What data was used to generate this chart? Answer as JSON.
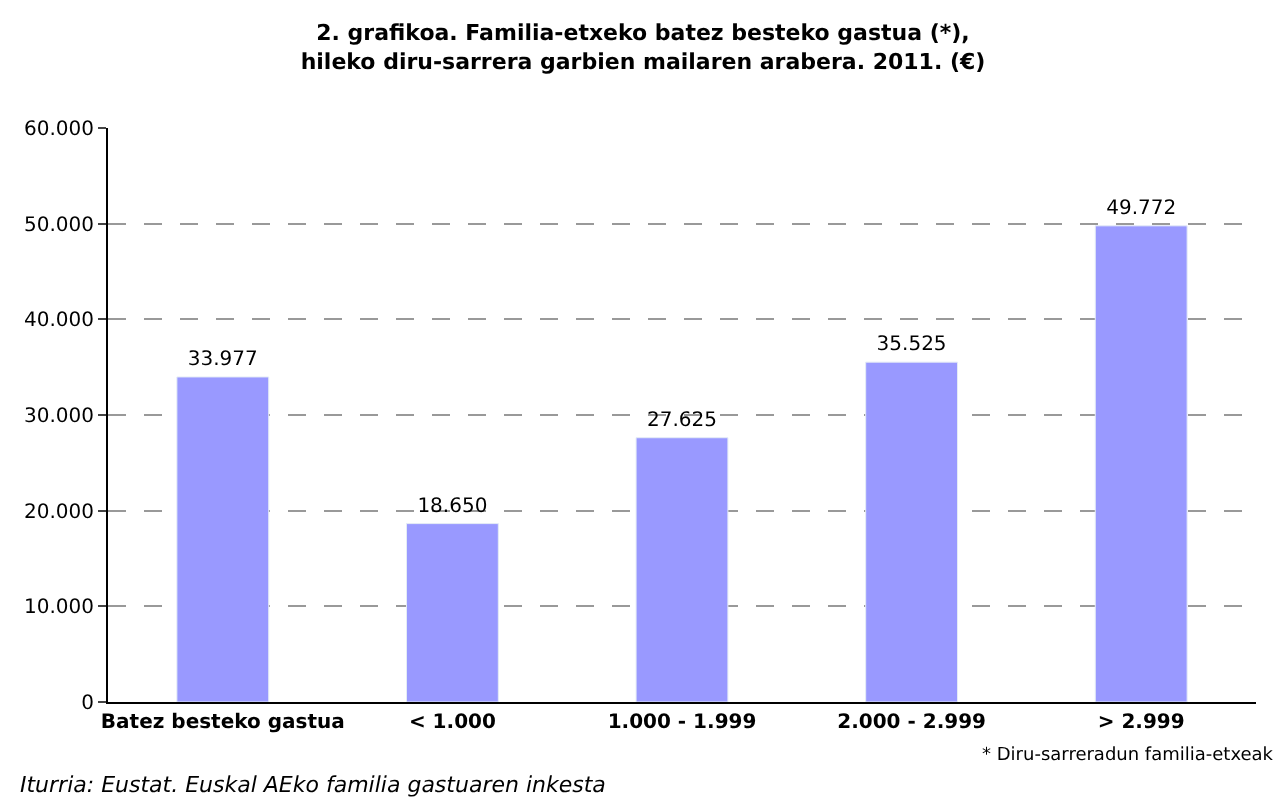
{
  "chart_data": {
    "type": "bar",
    "title": "2. grafikoa. Familia-etxeko batez besteko gastua (*),\nhileko diru-sarrera garbien mailaren arabera. 2011. (€)",
    "categories": [
      "Batez besteko gastua",
      "< 1.000",
      "1.000 - 1.999",
      "2.000 - 2.999",
      "> 2.999"
    ],
    "values": [
      33977,
      18650,
      27625,
      35525,
      49772
    ],
    "value_labels": [
      "33.977",
      "18.650",
      "27.625",
      "35.525",
      "49.772"
    ],
    "color": "#9999ff",
    "ylim": [
      0,
      60000
    ],
    "yticks": [
      {
        "value": 0,
        "label": "0"
      },
      {
        "value": 10000,
        "label": "10.000"
      },
      {
        "value": 20000,
        "label": "20.000"
      },
      {
        "value": 30000,
        "label": "30.000"
      },
      {
        "value": 40000,
        "label": "40.000"
      },
      {
        "value": 50000,
        "label": "50.000"
      },
      {
        "value": 60000,
        "label": "60.000"
      }
    ],
    "grid": "y",
    "legend": false,
    "annotations": [
      "Iturria: Eustat. Euskal AEko familia gastuaren inkesta",
      "* Diru-sarreradun familia-etxeak"
    ]
  }
}
